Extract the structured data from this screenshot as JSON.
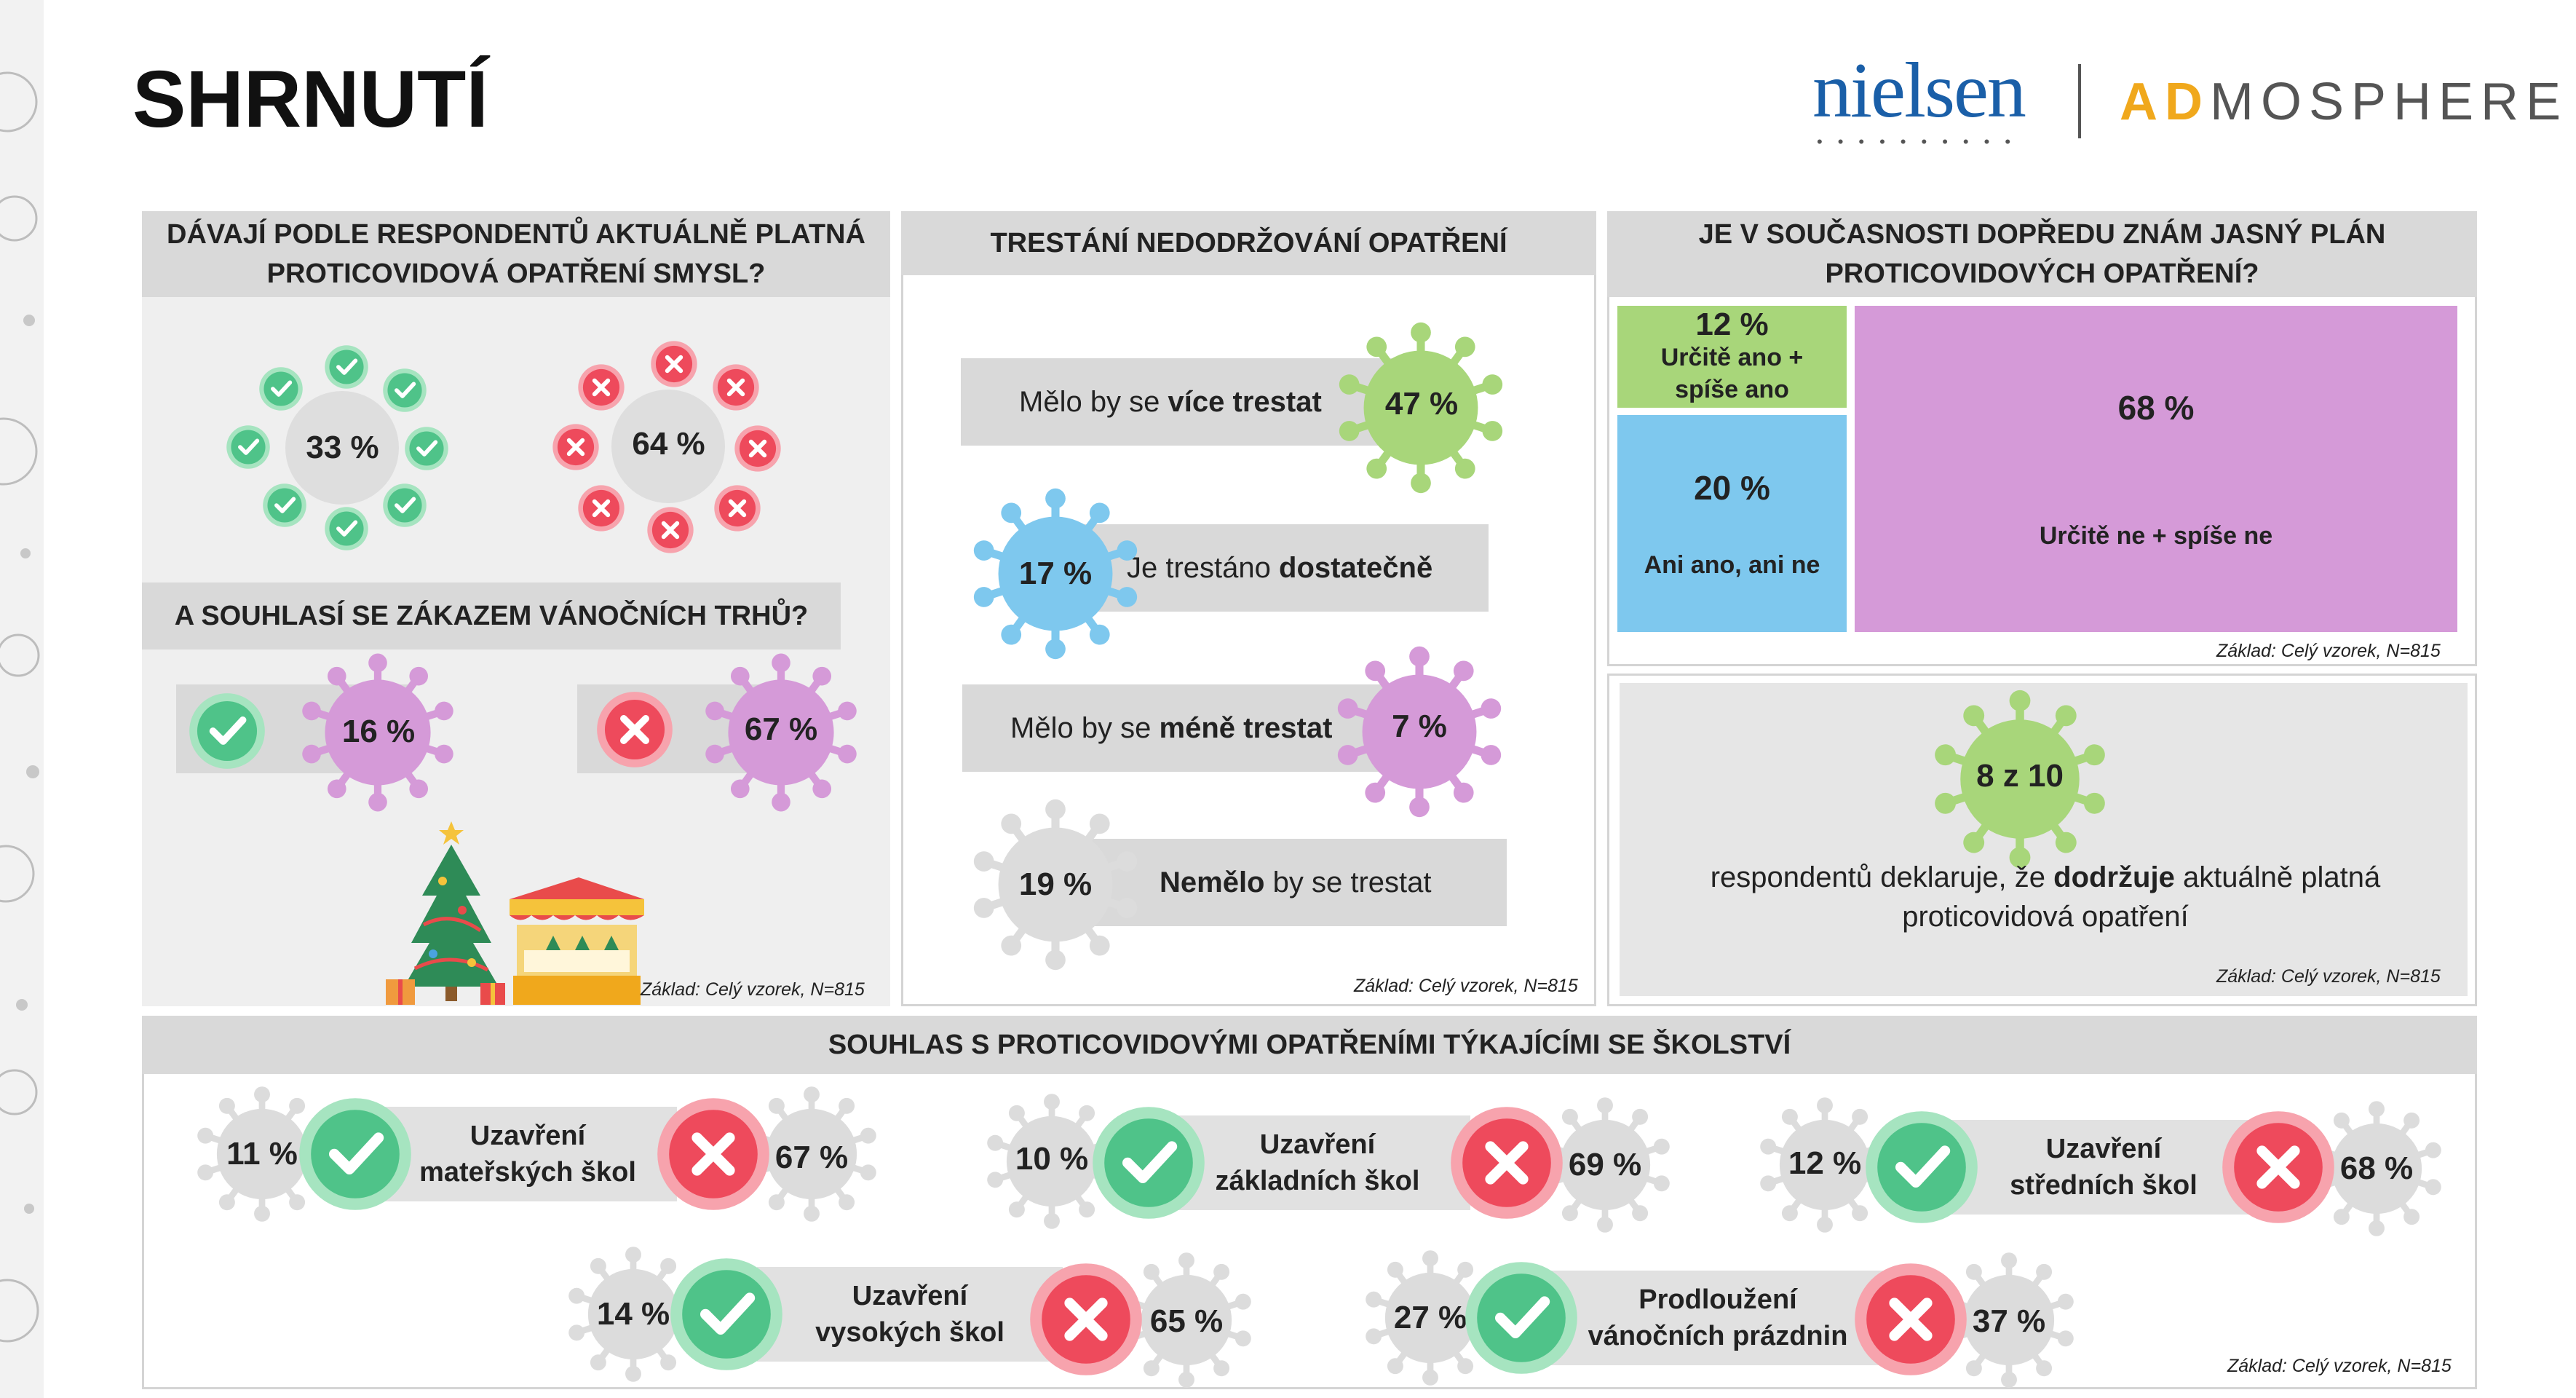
{
  "title": "SHRNUTÍ",
  "brand": {
    "nielsen": "nielsen",
    "admosphere_ad": "AD",
    "admosphere_rest": "MOSPHERE"
  },
  "colors": {
    "green": "#a8d67a",
    "blue": "#7ec8ee",
    "violet": "#d59ad8",
    "gray_virus": "#dcdcdc",
    "check": "#54c48a",
    "cross": "#ee4a5c",
    "header": "#d9d9d9",
    "panel": "#efefef"
  },
  "panel_sense": {
    "title": "DÁVAJÍ PODLE RESPONDENTŮ AKTUÁLNĚ PLATNÁ PROTICOVIDOVÁ OPATŘENÍ SMYSL?",
    "yes_value": "33 %",
    "no_value": "64 %"
  },
  "panel_xmas": {
    "title": "A SOUHLASÍ SE ZÁKAZEM VÁNOČNÍCH TRHŮ?",
    "yes_value": "16 %",
    "no_value": "67 %",
    "footnote": "Základ: Celý vzorek, N=815"
  },
  "panel_punish": {
    "title": "TRESTÁNÍ NEDODRŽOVÁNÍ OPATŘENÍ",
    "rows": [
      {
        "pre": "Mělo by se ",
        "bold": "více trestat",
        "post": "",
        "value": "47 %"
      },
      {
        "pre": "Je trestáno ",
        "bold": "dostatečně",
        "post": "",
        "value": "17 %"
      },
      {
        "pre": "Mělo by se ",
        "bold": "méně trestat",
        "post": "",
        "value": "7 %"
      },
      {
        "pre": "",
        "bold": "Nemělo",
        "post": " by se trestat",
        "value": "19 %"
      }
    ],
    "footnote": "Základ: Celý vzorek, N=815"
  },
  "panel_plan": {
    "title": "JE V SOUČASNOSTI DOPŘEDU ZNÁM JASNÝ PLÁN PROTICOVIDOVÝCH OPATŘENÍ?",
    "yes_value": "12 %",
    "yes_label": "Určitě ano + spíše ano",
    "neutral_value": "20 %",
    "neutral_label": "Ani ano, ani ne",
    "no_value": "68 %",
    "no_label": "Určitě ne + spíše ne",
    "footnote": "Základ: Celý vzorek, N=815"
  },
  "panel_comply": {
    "value": "8 z 10",
    "text_pre": "respondentů deklaruje, že ",
    "text_bold": "dodržuje",
    "text_post": " aktuálně platná proticovidová opatření",
    "footnote": "Základ: Celý vzorek, N=815"
  },
  "panel_school": {
    "title": "SOUHLAS S PROTICOVIDOVÝMI OPATŘENÍMI TÝKAJÍCÍMI SE ŠKOLSTVÍ",
    "items": [
      {
        "line1": "Uzavření",
        "line2": "mateřských škol",
        "yes": "11 %",
        "no": "67 %"
      },
      {
        "line1": "Uzavření",
        "line2": "základních škol",
        "yes": "10 %",
        "no": "69 %"
      },
      {
        "line1": "Uzavření",
        "line2": "středních škol",
        "yes": "12 %",
        "no": "68 %"
      },
      {
        "line1": "Uzavření",
        "line2": "vysokých škol",
        "yes": "14 %",
        "no": "65 %"
      },
      {
        "line1": "Prodloužení",
        "line2": "vánočních prázdnin",
        "yes": "27 %",
        "no": "37 %"
      }
    ],
    "footnote": "Základ: Celý vzorek, N=815"
  }
}
